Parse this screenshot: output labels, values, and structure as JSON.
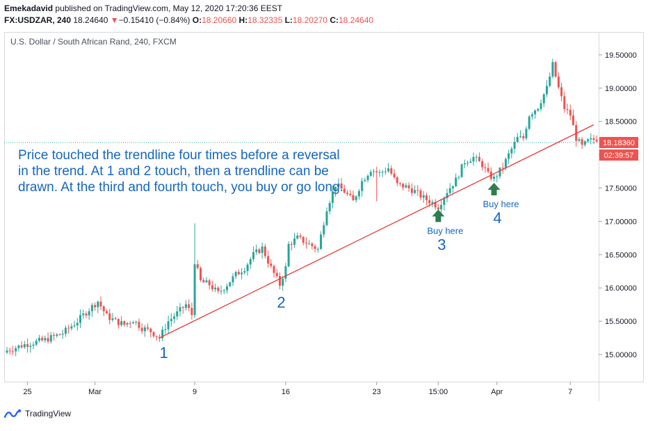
{
  "header": {
    "author": "Emekadavid",
    "published_text": "published on TradingView.com, May 12, 2020 17:20:36 EEST",
    "symbol": "FX:USDZAR, 240",
    "last": "18.24640",
    "change_arrow": "▼",
    "change": "−0.15410 (−0.84%)",
    "o_label": "O:",
    "o_value": "18.20660",
    "h_label": "H:",
    "h_value": "18.32335",
    "l_label": "L:",
    "l_value": "18.20270",
    "c_label": "C:",
    "c_value": "18.24640"
  },
  "colors": {
    "up": "#26a69a",
    "down": "#ef5350",
    "trendline": "#e53935",
    "annotation": "#1565c0",
    "arrow": "#2e7d4f",
    "price_line": "#26a69a"
  },
  "footer": {
    "brand": "TradingView",
    "icon": "tradingview-logo-icon"
  },
  "chart_data": {
    "type": "candlestick",
    "title": "U.S. Dollar / South African Rand, 240, FXCM",
    "x_ticks": [
      {
        "label": "25",
        "i": 7
      },
      {
        "label": "Mar",
        "i": 30
      },
      {
        "label": "9",
        "i": 64
      },
      {
        "label": "16",
        "i": 95
      },
      {
        "label": "23",
        "i": 126
      },
      {
        "label": "15:00",
        "i": 147
      },
      {
        "label": "Apr",
        "i": 167
      },
      {
        "label": "7",
        "i": 192
      }
    ],
    "y_ticks": [
      "15.00000",
      "15.50000",
      "16.00000",
      "16.50000",
      "17.00000",
      "17.50000",
      "18.00000",
      "18.50000",
      "19.00000",
      "19.50000"
    ],
    "ylim": [
      14.6,
      19.75
    ],
    "current_price": {
      "value": 18.1836,
      "label": "18.18360",
      "countdown": "02:39:57"
    },
    "trendline": {
      "from": {
        "i": 52,
        "price": 15.25
      },
      "to": {
        "i": 200,
        "price": 18.45
      }
    },
    "annotation_text": "Price touched the trendline four times before a reversal in the trend. At 1 and 2 touch, then a trendline can be drawn. At the third and fourth touch, you buy or go long.",
    "touches": [
      {
        "label": "1",
        "i": 53,
        "price": 15.26
      },
      {
        "label": "2",
        "i": 93,
        "price": 16.02
      },
      {
        "label": "3",
        "i": 147,
        "price": 17.22,
        "buy_text": "Buy here"
      },
      {
        "label": "4",
        "i": 166,
        "price": 17.62,
        "buy_text": "Buy here"
      }
    ],
    "anchors": [
      [
        0,
        15.06
      ],
      [
        6,
        15.15
      ],
      [
        13,
        15.22
      ],
      [
        19,
        15.32
      ],
      [
        24,
        15.5
      ],
      [
        28,
        15.68
      ],
      [
        31,
        15.8
      ],
      [
        34,
        15.58
      ],
      [
        37,
        15.5
      ],
      [
        40,
        15.45
      ],
      [
        43,
        15.52
      ],
      [
        46,
        15.4
      ],
      [
        49,
        15.35
      ],
      [
        52,
        15.25
      ],
      [
        55,
        15.5
      ],
      [
        58,
        15.62
      ],
      [
        61,
        15.75
      ],
      [
        63,
        15.6
      ],
      [
        64,
        16.4
      ],
      [
        66,
        16.1
      ],
      [
        69,
        16.05
      ],
      [
        72,
        15.92
      ],
      [
        75,
        16.05
      ],
      [
        78,
        16.2
      ],
      [
        81,
        16.3
      ],
      [
        84,
        16.5
      ],
      [
        87,
        16.6
      ],
      [
        90,
        16.3
      ],
      [
        93,
        16.05
      ],
      [
        95,
        16.3
      ],
      [
        96,
        16.65
      ],
      [
        99,
        16.75
      ],
      [
        102,
        16.68
      ],
      [
        106,
        16.58
      ],
      [
        109,
        17.2
      ],
      [
        112,
        17.55
      ],
      [
        115,
        17.45
      ],
      [
        118,
        17.3
      ],
      [
        121,
        17.6
      ],
      [
        124,
        17.78
      ],
      [
        127,
        17.72
      ],
      [
        130,
        17.8
      ],
      [
        133,
        17.55
      ],
      [
        136,
        17.52
      ],
      [
        139,
        17.45
      ],
      [
        142,
        17.35
      ],
      [
        145,
        17.28
      ],
      [
        147,
        17.22
      ],
      [
        150,
        17.45
      ],
      [
        153,
        17.62
      ],
      [
        156,
        17.9
      ],
      [
        159,
        17.96
      ],
      [
        162,
        17.85
      ],
      [
        164,
        17.7
      ],
      [
        166,
        17.64
      ],
      [
        169,
        17.82
      ],
      [
        171,
        18.0
      ],
      [
        174,
        18.25
      ],
      [
        176,
        18.25
      ],
      [
        178,
        18.6
      ],
      [
        181,
        18.72
      ],
      [
        184,
        19.0
      ],
      [
        186,
        19.35
      ],
      [
        188,
        19.0
      ],
      [
        190,
        18.7
      ],
      [
        192,
        18.6
      ],
      [
        194,
        18.25
      ],
      [
        196,
        18.12
      ],
      [
        198,
        18.2
      ],
      [
        201,
        18.24
      ]
    ],
    "spikes": [
      {
        "i": 64,
        "high": 16.97,
        "low": 15.8
      },
      {
        "i": 126,
        "high": 17.82,
        "low": 17.3
      }
    ]
  }
}
